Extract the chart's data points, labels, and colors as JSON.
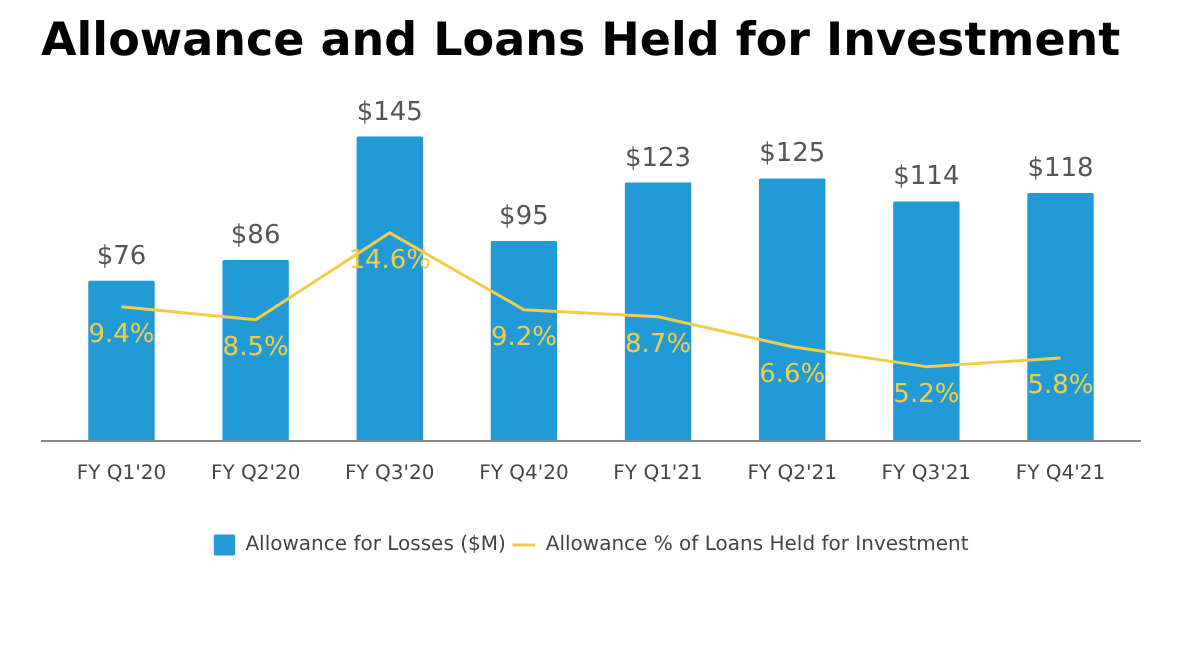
{
  "chart_data": {
    "type": "bar",
    "title": "Allowance and Loans Held for Investment",
    "categories": [
      "FY Q1'20",
      "FY Q2'20",
      "FY Q3'20",
      "FY Q4'20",
      "FY Q1'21",
      "FY Q2'21",
      "FY Q3'21",
      "FY Q4'21"
    ],
    "series": [
      {
        "name": "Allowance for Losses ($M)",
        "color": "#229ad6",
        "values": [
          76,
          86,
          145,
          95,
          123,
          125,
          114,
          118
        ],
        "value_labels": [
          "$76",
          "$86",
          "$145",
          "$95",
          "$123",
          "$125",
          "$114",
          "$118"
        ]
      },
      {
        "name": "Allowance % of Loans Held for Investment",
        "type": "line",
        "axis": "y2",
        "color": "#f2cd4b",
        "values": [
          9.4,
          8.5,
          14.6,
          9.2,
          8.7,
          6.6,
          5.2,
          5.8
        ],
        "value_labels": [
          "9.4%",
          "8.5%",
          "14.6%",
          "9.2%",
          "8.7%",
          "6.6%",
          "5.2%",
          "5.8%"
        ]
      }
    ],
    "tick_labels": "x",
    "grid": false,
    "legend": "bottom"
  }
}
